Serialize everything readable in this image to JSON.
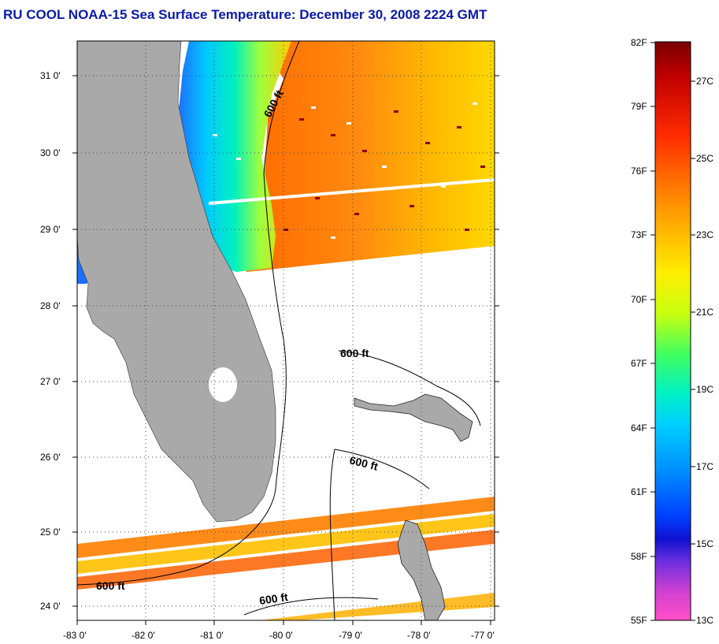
{
  "title": "RU COOL  NOAA-15  Sea Surface Temperature:  December 30, 2008 2224 GMT",
  "map": {
    "lat_ticks": [
      "31 0'",
      "30 0'",
      "29 0'",
      "28 0'",
      "27 0'",
      "26 0'",
      "25 0'",
      "24 0'"
    ],
    "lon_ticks": [
      "-83 0'",
      "-82 0'",
      "-81 0'",
      "-80 0'",
      "-79 0'",
      "-78 0'",
      "-77 0'"
    ],
    "contour_label": "600 ft",
    "colors": {
      "land": "#a9a9a9",
      "ocean_nodata": "#ffffff",
      "frame": "#000000"
    }
  },
  "colorbar": {
    "fahrenheit_labels": [
      "82F",
      "79F",
      "76F",
      "73F",
      "70F",
      "67F",
      "64F",
      "61F",
      "58F",
      "55F"
    ],
    "celsius_labels": [
      "27C",
      "25C",
      "23C",
      "21C",
      "19C",
      "17C",
      "15C",
      "13C"
    ],
    "gradient": [
      "#7a0000",
      "#c80000",
      "#ff2a00",
      "#ff7a00",
      "#ffb000",
      "#ffe600",
      "#e8ff00",
      "#9cff2a",
      "#33ff66",
      "#00f0c8",
      "#00d2ff",
      "#0096ff",
      "#0050ff",
      "#1010e0",
      "#7a30e0",
      "#d040d8",
      "#ff50c8"
    ]
  }
}
